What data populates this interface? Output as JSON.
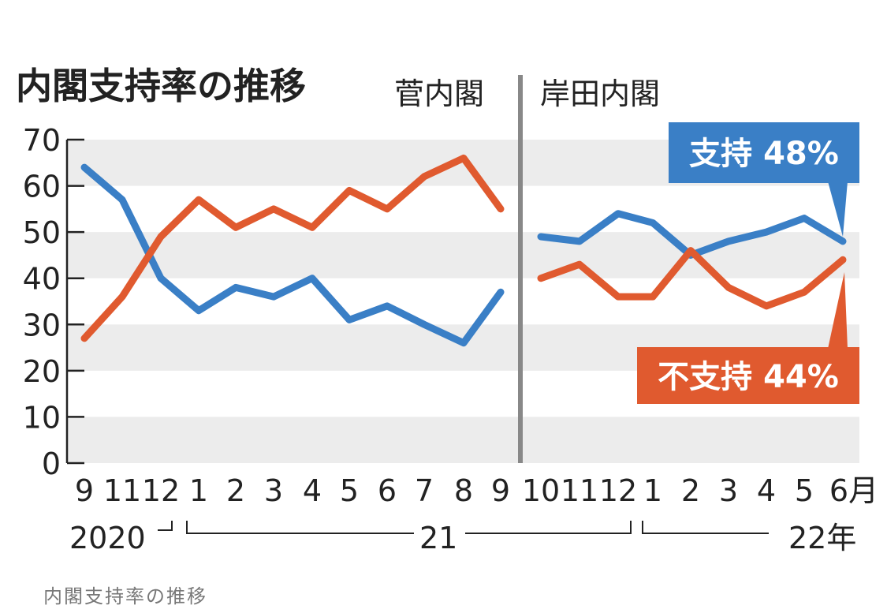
{
  "chart_data": {
    "type": "line",
    "title": "内閣支持率の推移",
    "caption": "内閣支持率の推移",
    "ylim": [
      0,
      70
    ],
    "y_ticks": [
      "0",
      "10",
      "20",
      "30",
      "40",
      "50",
      "60",
      "70"
    ],
    "grid": "alternating horizontal bands",
    "periods": [
      {
        "label": "菅内閣",
        "x_labels": [
          "9",
          "11",
          "12",
          "1",
          "2",
          "3",
          "4",
          "5",
          "6",
          "7",
          "8",
          "9"
        ]
      },
      {
        "label": "岸田内閣",
        "x_labels": [
          "10",
          "11",
          "12",
          "1",
          "2",
          "3",
          "4",
          "5",
          "6月"
        ]
      }
    ],
    "year_labels": [
      "2020",
      "21",
      "22年"
    ],
    "series": [
      {
        "name": "支持",
        "callout": "支持 48%",
        "color": "#3a7fc6",
        "suga": [
          64,
          57,
          40,
          33,
          38,
          36,
          40,
          31,
          34,
          30,
          26,
          37
        ],
        "kishida": [
          49,
          48,
          54,
          52,
          45,
          48,
          50,
          53,
          48
        ]
      },
      {
        "name": "不支持",
        "callout": "不支持 44%",
        "color": "#e05a2f",
        "suga": [
          27,
          36,
          49,
          57,
          51,
          55,
          51,
          59,
          55,
          62,
          66,
          55
        ],
        "kishida": [
          40,
          43,
          36,
          36,
          46,
          38,
          34,
          37,
          44
        ]
      }
    ]
  }
}
